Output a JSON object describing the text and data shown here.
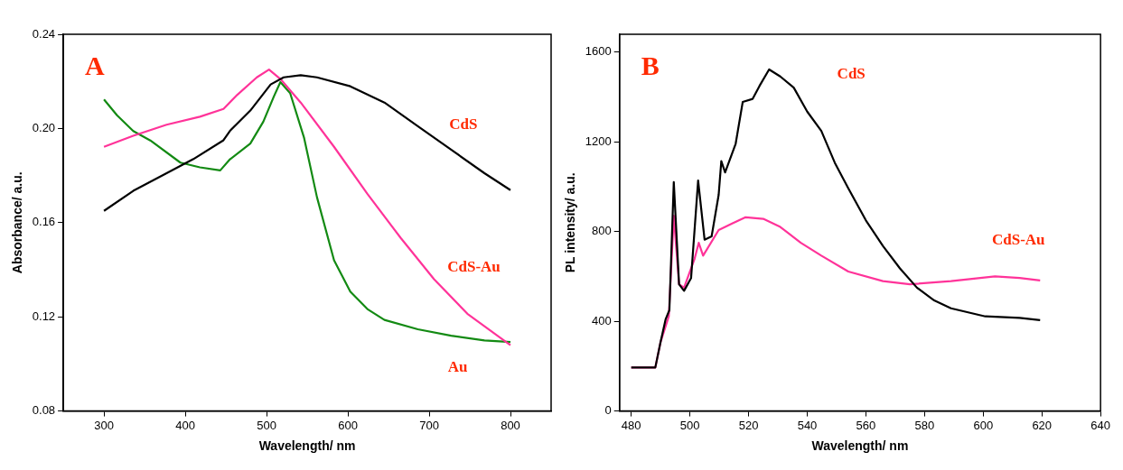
{
  "chart_data": [
    {
      "type": "line",
      "xlabel": "Wavelength/ nm",
      "ylabel": "Absorbance/ a.u.",
      "annotations": [
        "A"
      ],
      "xlim": [
        250,
        850
      ],
      "xticks": [
        300,
        400,
        500,
        600,
        700,
        800
      ],
      "ylim": [
        0.08,
        0.24
      ],
      "yticks": [
        {
          "value": 0.08,
          "label": "0.08"
        },
        {
          "value": 0.12,
          "label": "0.12"
        },
        {
          "value": 0.16,
          "label": "0.16"
        },
        {
          "value": 0.2,
          "label": "0.20"
        },
        {
          "value": 0.24,
          "label": "0.24"
        }
      ],
      "grid": false,
      "legend": false,
      "marker": "none",
      "line_style": "solid",
      "series": [
        {
          "name": "CdS",
          "color": "#000000",
          "x": [
            300,
            336,
            377,
            410,
            447,
            455,
            480,
            505,
            521,
            542,
            562,
            603,
            645,
            686,
            727,
            768,
            800
          ],
          "values": [
            0.165,
            0.1735,
            0.181,
            0.187,
            0.195,
            0.199,
            0.2076,
            0.2187,
            0.2217,
            0.2226,
            0.2217,
            0.2179,
            0.211,
            0.201,
            0.191,
            0.181,
            0.1738
          ]
        },
        {
          "name": "CdS-Au",
          "color": "#ff3399",
          "x": [
            300,
            336,
            377,
            418,
            447,
            464,
            488,
            503,
            517,
            542,
            583,
            624,
            665,
            706,
            747,
            800
          ],
          "values": [
            0.1922,
            0.1969,
            0.2016,
            0.205,
            0.2083,
            0.2143,
            0.2217,
            0.225,
            0.221,
            0.211,
            0.1922,
            0.1722,
            0.1535,
            0.136,
            0.1213,
            0.108
          ]
        },
        {
          "name": "Au",
          "color": "#138a13",
          "x": [
            300,
            316,
            336,
            357,
            394,
            418,
            443,
            455,
            480,
            496,
            509,
            517,
            529,
            546,
            562,
            583,
            603,
            624,
            645,
            686,
            727,
            768,
            800
          ],
          "values": [
            0.2123,
            0.2056,
            0.1989,
            0.1949,
            0.1855,
            0.1835,
            0.1822,
            0.1869,
            0.1936,
            0.2029,
            0.2136,
            0.2197,
            0.215,
            0.1962,
            0.1708,
            0.144,
            0.1307,
            0.1233,
            0.1187,
            0.1147,
            0.112,
            0.11,
            0.1093
          ]
        }
      ]
    },
    {
      "type": "line",
      "xlabel": "Wavelength/ nm",
      "ylabel": "PL intensity/ a.u.",
      "annotations": [
        "B"
      ],
      "xlim": [
        476,
        640
      ],
      "xticks": [
        480,
        500,
        520,
        540,
        560,
        580,
        600,
        620,
        640
      ],
      "ylim": [
        0,
        1680
      ],
      "yticks": [
        0,
        400,
        800,
        1200,
        1600
      ],
      "grid": false,
      "legend": false,
      "marker": "none",
      "line_style": "solid",
      "series": [
        {
          "name": "CdS",
          "color": "#000000",
          "x": [
            480,
            488.2,
            490,
            491.7,
            493,
            494.5,
            496.3,
            498,
            500.4,
            502.8,
            505,
            507.4,
            509.8,
            510.7,
            512,
            515.6,
            518,
            521.4,
            523.7,
            527,
            530.8,
            535.4,
            540,
            544.8,
            549.4,
            554,
            560,
            565.8,
            571.6,
            577.4,
            583.3,
            589,
            600.7,
            612.4,
            619.4
          ],
          "values": [
            194,
            194,
            308,
            408,
            450,
            1021,
            565,
            536,
            593,
            1028,
            764,
            779,
            964,
            1114,
            1064,
            1192,
            1378,
            1392,
            1449,
            1523,
            1492,
            1442,
            1335,
            1249,
            1107,
            993,
            850,
            736,
            636,
            550,
            493,
            458,
            422,
            415,
            405
          ]
        },
        {
          "name": "CdS-Au",
          "color": "#ff3399",
          "x": [
            480,
            488.2,
            490,
            492.8,
            494.5,
            496.3,
            498,
            501.6,
            503,
            504.5,
            509.8,
            514.4,
            519,
            525,
            530.8,
            537.8,
            544.8,
            554,
            565.8,
            575,
            589,
            604,
            612.4,
            619.4
          ],
          "values": [
            194,
            194,
            308,
            422,
            871,
            565,
            550,
            679,
            750,
            693,
            807,
            836,
            864,
            857,
            821,
            750,
            693,
            622,
            579,
            565,
            579,
            600,
            593,
            582
          ]
        }
      ]
    }
  ]
}
